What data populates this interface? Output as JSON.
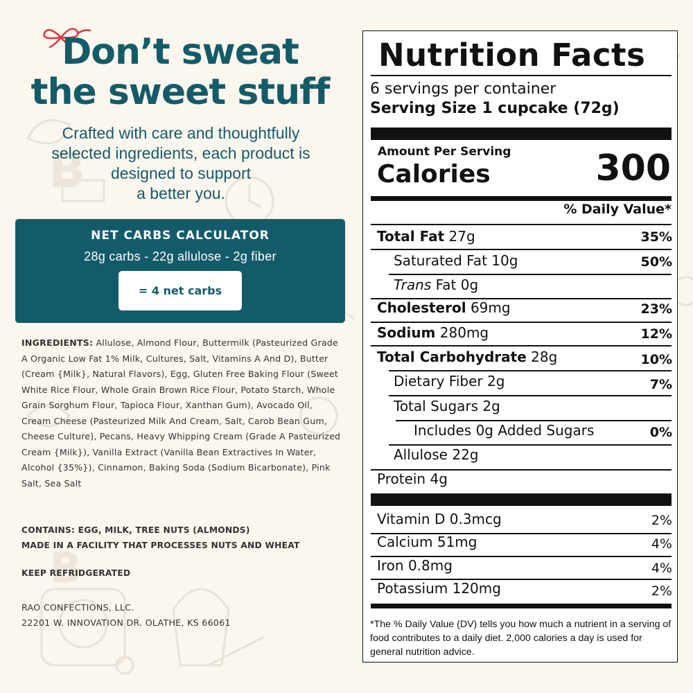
{
  "promo": {
    "headline_line1": "Don’t sweat",
    "headline_line2": "the sweet stuff",
    "subhead_line1": "Crafted with care and thoughtfully",
    "subhead_line2": "selected ingredients, each product is",
    "subhead_line3": "designed to support",
    "subhead_line4": "a better you.",
    "brand_color": "#145b6a",
    "bow_color": "#d9363e"
  },
  "calculator": {
    "title": "NET CARBS CALCULATOR",
    "formula": "28g carbs - 22g allulose - 2g fiber",
    "result": "= 4 net carbs"
  },
  "ingredients": {
    "label": "INGREDIENTS:",
    "text": "Allulose, Almond Flour, Buttermilk (Pasteurized Grade A Organic Low Fat 1% Milk, Cultures, Salt, Vitamins A And D), Butter (Cream {Milk}, Natural Flavors), Egg, Gluten Free Baking Flour (Sweet White Rice Flour, Whole Grain Brown Rice Flour, Potato Starch, Whole Grain Sorghum Flour, Tapioca Flour, Xanthan Gum), Avocado Oil, Cream Cheese (Pasteurized Milk And Cream, Salt, Carob Bean Gum, Cheese Culture), Pecans, Heavy Whipping Cream (Grade A Pasteurized Cream {Milk}), Vanilla Extract (Vanilla Bean Extractives In Water, Alcohol {35%}), Cinnamon, Baking Soda (Sodium Bicarbonate), Pink Salt, Sea Salt"
  },
  "allergens": {
    "contains": "CONTAINS: EGG, MILK, TREE NUTS (ALMONDS)",
    "facility": "MADE IN A FACILITY THAT PROCESSES NUTS AND WHEAT"
  },
  "storage": "KEEP REFRIDGERATED",
  "company": {
    "name": "RAO CONFECTIONS, LLC.",
    "address": "22201 W. INNOVATION DR. OLATHE, KS 66061"
  },
  "nutrition": {
    "title": "Nutrition Facts",
    "servings": "6 servings per container",
    "serving_size": "Serving Size 1 cupcake (72g)",
    "amount_per_serving": "Amount Per Serving",
    "calories_label": "Calories",
    "calories_value": "300",
    "dv_header": "% Daily Value*",
    "rows": [
      {
        "name": "Total Fat",
        "amount": "27g",
        "dv": "35%"
      },
      {
        "name": "Saturated Fat",
        "amount": "10g",
        "dv": "50%"
      },
      {
        "name": "Trans",
        "amount": "Fat 0g",
        "dv": ""
      },
      {
        "name": "Cholesterol",
        "amount": "69mg",
        "dv": "23%"
      },
      {
        "name": "Sodium",
        "amount": "280mg",
        "dv": "12%"
      },
      {
        "name": "Total Carbohydrate",
        "amount": "28g",
        "dv": "10%"
      },
      {
        "name": "Dietary Fiber",
        "amount": "2g",
        "dv": "7%"
      },
      {
        "name": "Total Sugars",
        "amount": "2g",
        "dv": ""
      },
      {
        "name": "Includes 0g Added Sugars",
        "amount": "",
        "dv": "0%"
      },
      {
        "name": "Allulose",
        "amount": "22g",
        "dv": ""
      },
      {
        "name": "Protein",
        "amount": "4g",
        "dv": ""
      }
    ],
    "vitamins": [
      {
        "name": "Vitamin D",
        "amount": "0.3mcg",
        "dv": "2%"
      },
      {
        "name": "Calcium",
        "amount": "51mg",
        "dv": "4%"
      },
      {
        "name": "Iron",
        "amount": "0.8mg",
        "dv": "4%"
      },
      {
        "name": "Potassium",
        "amount": "120mg",
        "dv": "2%"
      }
    ],
    "footnote": "*The % Daily Value (DV) tells you how much a nutrient in a serving of food contributes to a daily diet. 2,000 calories a day is used for general nutrition advice."
  }
}
